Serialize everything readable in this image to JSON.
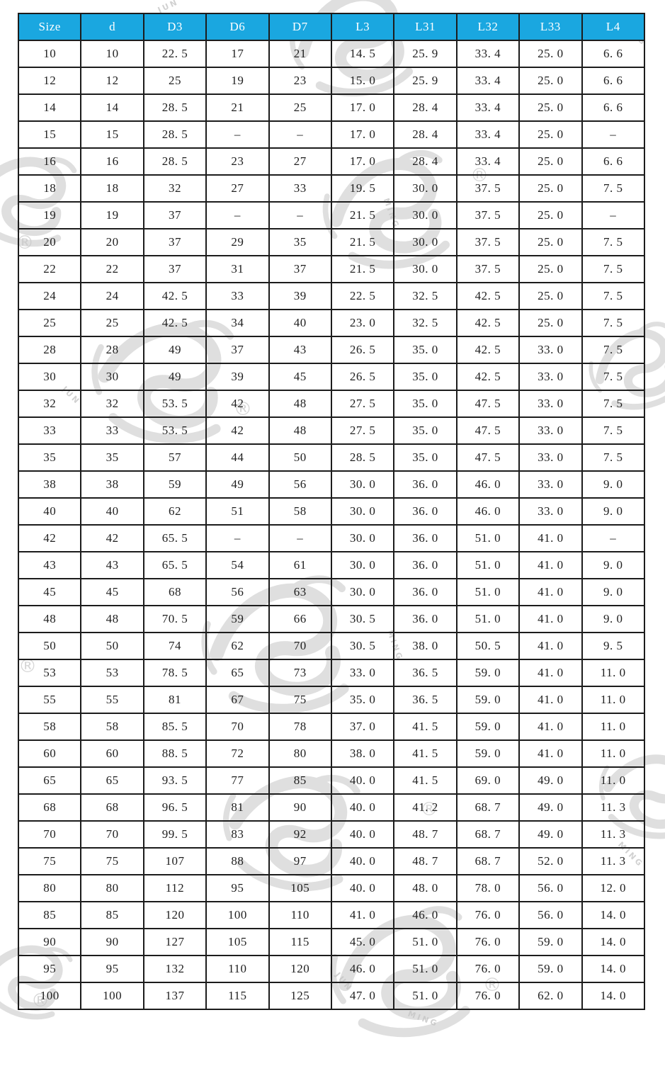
{
  "colors": {
    "header_bg": "#1aa7e0",
    "header_text": "#ffffff",
    "cell_text": "#1f1f1f",
    "border": "#1c1c1c",
    "watermark": "#c6c6c6",
    "page_bg": "#ffffff"
  },
  "watermark": {
    "registered": "®",
    "words": {
      "jun": "JUN",
      "ming": "MING",
      "ng": "NG"
    }
  },
  "table": {
    "columns": [
      "Size",
      "d",
      "D3",
      "D6",
      "D7",
      "L3",
      "L31",
      "L32",
      "L33",
      "L4"
    ],
    "rows": [
      [
        "10",
        "10",
        "22. 5",
        "17",
        "21",
        "14. 5",
        "25. 9",
        "33. 4",
        "25. 0",
        "6. 6"
      ],
      [
        "12",
        "12",
        "25",
        "19",
        "23",
        "15. 0",
        "25. 9",
        "33. 4",
        "25. 0",
        "6. 6"
      ],
      [
        "14",
        "14",
        "28. 5",
        "21",
        "25",
        "17. 0",
        "28. 4",
        "33. 4",
        "25. 0",
        "6. 6"
      ],
      [
        "15",
        "15",
        "28. 5",
        "–",
        "–",
        "17. 0",
        "28. 4",
        "33. 4",
        "25. 0",
        "–"
      ],
      [
        "16",
        "16",
        "28. 5",
        "23",
        "27",
        "17. 0",
        "28. 4",
        "33. 4",
        "25. 0",
        "6. 6"
      ],
      [
        "18",
        "18",
        "32",
        "27",
        "33",
        "19. 5",
        "30. 0",
        "37. 5",
        "25. 0",
        "7. 5"
      ],
      [
        "19",
        "19",
        "37",
        "–",
        "–",
        "21. 5",
        "30. 0",
        "37. 5",
        "25. 0",
        "–"
      ],
      [
        "20",
        "20",
        "37",
        "29",
        "35",
        "21. 5",
        "30. 0",
        "37. 5",
        "25. 0",
        "7. 5"
      ],
      [
        "22",
        "22",
        "37",
        "31",
        "37",
        "21. 5",
        "30. 0",
        "37. 5",
        "25. 0",
        "7. 5"
      ],
      [
        "24",
        "24",
        "42. 5",
        "33",
        "39",
        "22. 5",
        "32. 5",
        "42. 5",
        "25. 0",
        "7. 5"
      ],
      [
        "25",
        "25",
        "42. 5",
        "34",
        "40",
        "23. 0",
        "32. 5",
        "42. 5",
        "25. 0",
        "7. 5"
      ],
      [
        "28",
        "28",
        "49",
        "37",
        "43",
        "26. 5",
        "35. 0",
        "42. 5",
        "33. 0",
        "7. 5"
      ],
      [
        "30",
        "30",
        "49",
        "39",
        "45",
        "26. 5",
        "35. 0",
        "42. 5",
        "33. 0",
        "7. 5"
      ],
      [
        "32",
        "32",
        "53. 5",
        "42",
        "48",
        "27. 5",
        "35. 0",
        "47. 5",
        "33. 0",
        "7. 5"
      ],
      [
        "33",
        "33",
        "53. 5",
        "42",
        "48",
        "27. 5",
        "35. 0",
        "47. 5",
        "33. 0",
        "7. 5"
      ],
      [
        "35",
        "35",
        "57",
        "44",
        "50",
        "28. 5",
        "35. 0",
        "47. 5",
        "33. 0",
        "7. 5"
      ],
      [
        "38",
        "38",
        "59",
        "49",
        "56",
        "30. 0",
        "36. 0",
        "46. 0",
        "33. 0",
        "9. 0"
      ],
      [
        "40",
        "40",
        "62",
        "51",
        "58",
        "30. 0",
        "36. 0",
        "46. 0",
        "33. 0",
        "9. 0"
      ],
      [
        "42",
        "42",
        "65. 5",
        "–",
        "–",
        "30. 0",
        "36. 0",
        "51. 0",
        "41. 0",
        "–"
      ],
      [
        "43",
        "43",
        "65. 5",
        "54",
        "61",
        "30. 0",
        "36. 0",
        "51. 0",
        "41. 0",
        "9. 0"
      ],
      [
        "45",
        "45",
        "68",
        "56",
        "63",
        "30. 0",
        "36. 0",
        "51. 0",
        "41. 0",
        "9. 0"
      ],
      [
        "48",
        "48",
        "70. 5",
        "59",
        "66",
        "30. 5",
        "36. 0",
        "51. 0",
        "41. 0",
        "9. 0"
      ],
      [
        "50",
        "50",
        "74",
        "62",
        "70",
        "30. 5",
        "38. 0",
        "50. 5",
        "41. 0",
        "9. 5"
      ],
      [
        "53",
        "53",
        "78. 5",
        "65",
        "73",
        "33. 0",
        "36. 5",
        "59. 0",
        "41. 0",
        "11. 0"
      ],
      [
        "55",
        "55",
        "81",
        "67",
        "75",
        "35. 0",
        "36. 5",
        "59. 0",
        "41. 0",
        "11. 0"
      ],
      [
        "58",
        "58",
        "85. 5",
        "70",
        "78",
        "37. 0",
        "41. 5",
        "59. 0",
        "41. 0",
        "11. 0"
      ],
      [
        "60",
        "60",
        "88. 5",
        "72",
        "80",
        "38. 0",
        "41. 5",
        "59. 0",
        "41. 0",
        "11. 0"
      ],
      [
        "65",
        "65",
        "93. 5",
        "77",
        "85",
        "40. 0",
        "41. 5",
        "69. 0",
        "49. 0",
        "11. 0"
      ],
      [
        "68",
        "68",
        "96. 5",
        "81",
        "90",
        "40. 0",
        "41. 2",
        "68. 7",
        "49. 0",
        "11. 3"
      ],
      [
        "70",
        "70",
        "99. 5",
        "83",
        "92",
        "40. 0",
        "48. 7",
        "68. 7",
        "49. 0",
        "11. 3"
      ],
      [
        "75",
        "75",
        "107",
        "88",
        "97",
        "40. 0",
        "48. 7",
        "68. 7",
        "52. 0",
        "11. 3"
      ],
      [
        "80",
        "80",
        "112",
        "95",
        "105",
        "40. 0",
        "48. 0",
        "78. 0",
        "56. 0",
        "12. 0"
      ],
      [
        "85",
        "85",
        "120",
        "100",
        "110",
        "41. 0",
        "46. 0",
        "76. 0",
        "56. 0",
        "14. 0"
      ],
      [
        "90",
        "90",
        "127",
        "105",
        "115",
        "45. 0",
        "51. 0",
        "76. 0",
        "59. 0",
        "14. 0"
      ],
      [
        "95",
        "95",
        "132",
        "110",
        "120",
        "46. 0",
        "51. 0",
        "76. 0",
        "59. 0",
        "14. 0"
      ],
      [
        "100",
        "100",
        "137",
        "115",
        "125",
        "47. 0",
        "51. 0",
        "76. 0",
        "62. 0",
        "14. 0"
      ]
    ]
  }
}
